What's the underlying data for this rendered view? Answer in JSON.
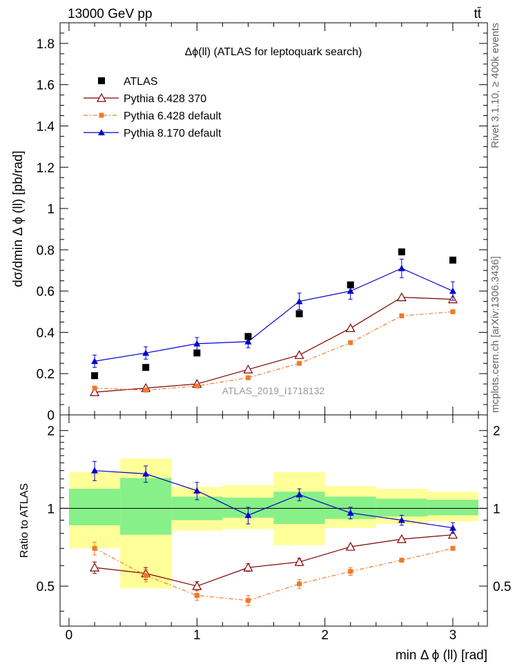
{
  "header": {
    "energy": "13000 GeV pp",
    "process": "tt̄"
  },
  "side_labels": {
    "rivet": "Rivet 3.1.10, ≥ 400k events",
    "mcplots": "mcplots.cern.ch [arXiv:1306.3436]"
  },
  "watermark": "ATLAS_2019_I1718132",
  "colors": {
    "atlas": "#000000",
    "py6_370": "#7f0000",
    "py6_default": "#f07a28",
    "py8": "#0000cc",
    "band_stat": "#88f088",
    "band_tot": "#ffff99"
  },
  "legend": {
    "atlas": "ATLAS",
    "py6_370": "Pythia 6.428 370",
    "py6_default": "Pythia 6.428 default",
    "py8": "Pythia 8.170 default"
  },
  "chart_data": {
    "type": "scatter",
    "title": "Δϕ(ll) (ATLAS for leptoquark search)",
    "xlabel": "min Δ ϕ (ll) [rad]",
    "ylabel": "dσ/dmin Δ ϕ (ll) [pb/rad]",
    "ratio_ylabel": "Ratio to ATLAS",
    "xlim": [
      -0.07,
      3.27
    ],
    "ylim": [
      0,
      1.9
    ],
    "ratio_ylim": [
      0.35,
      2.3
    ],
    "ratio_scale": "log",
    "x_ticks": [
      "0",
      "1",
      "2",
      "3"
    ],
    "y_ticks": [
      "0",
      "0.2",
      "0.4",
      "0.6",
      "0.8",
      "1",
      "1.2",
      "1.4",
      "1.6",
      "1.8"
    ],
    "ratio_ticks": [
      "0.5",
      "1",
      "2"
    ],
    "x": [
      0.2,
      0.6,
      1.0,
      1.4,
      1.8,
      2.2,
      2.6,
      3.0
    ],
    "bin_edges": [
      0,
      0.4,
      0.8,
      1.2,
      1.6,
      2.0,
      2.4,
      2.8,
      3.2
    ],
    "series": [
      {
        "name": "ATLAS",
        "values": [
          0.19,
          0.23,
          0.3,
          0.38,
          0.49,
          0.63,
          0.79,
          0.75
        ]
      },
      {
        "name": "Pythia 6.428 370",
        "values": [
          0.11,
          0.13,
          0.15,
          0.22,
          0.29,
          0.42,
          0.57,
          0.56
        ],
        "err": [
          0.005,
          0.005,
          0.006,
          0.007,
          0.008,
          0.01,
          0.012,
          0.012
        ]
      },
      {
        "name": "Pythia 6.428 default",
        "values": [
          0.13,
          0.12,
          0.14,
          0.18,
          0.25,
          0.35,
          0.48,
          0.5
        ],
        "err": [
          0.005,
          0.005,
          0.005,
          0.006,
          0.007,
          0.008,
          0.01,
          0.01
        ]
      },
      {
        "name": "Pythia 8.170 default",
        "values": [
          0.26,
          0.3,
          0.345,
          0.355,
          0.55,
          0.6,
          0.71,
          0.6
        ],
        "err": [
          0.03,
          0.03,
          0.03,
          0.03,
          0.04,
          0.04,
          0.045,
          0.045
        ]
      }
    ],
    "ratio": {
      "py6_370": {
        "values": [
          0.59,
          0.56,
          0.5,
          0.59,
          0.62,
          0.71,
          0.76,
          0.79
        ],
        "err": [
          0.03,
          0.03,
          0.02,
          0.02,
          0.02,
          0.01,
          0.01,
          0.01
        ]
      },
      "py6_default": {
        "values": [
          0.7,
          0.55,
          0.46,
          0.44,
          0.51,
          0.57,
          0.63,
          0.7
        ],
        "err": [
          0.04,
          0.03,
          0.02,
          0.02,
          0.02,
          0.02,
          0.01,
          0.01
        ]
      },
      "py8": {
        "values": [
          1.4,
          1.36,
          1.17,
          0.94,
          1.13,
          0.96,
          0.9,
          0.84
        ],
        "err": [
          0.12,
          0.1,
          0.09,
          0.07,
          0.06,
          0.05,
          0.04,
          0.04
        ]
      },
      "band_stat": [
        [
          0.86,
          1.19
        ],
        [
          0.79,
          1.31
        ],
        [
          0.9,
          1.11
        ],
        [
          0.92,
          1.1
        ],
        [
          0.87,
          1.16
        ],
        [
          0.91,
          1.11
        ],
        [
          0.93,
          1.09
        ],
        [
          0.94,
          1.08
        ]
      ],
      "band_tot": [
        [
          0.7,
          1.38
        ],
        [
          0.49,
          1.56
        ],
        [
          0.82,
          1.21
        ],
        [
          0.83,
          1.23
        ],
        [
          0.72,
          1.38
        ],
        [
          0.84,
          1.22
        ],
        [
          0.87,
          1.19
        ],
        [
          0.89,
          1.16
        ]
      ]
    }
  }
}
